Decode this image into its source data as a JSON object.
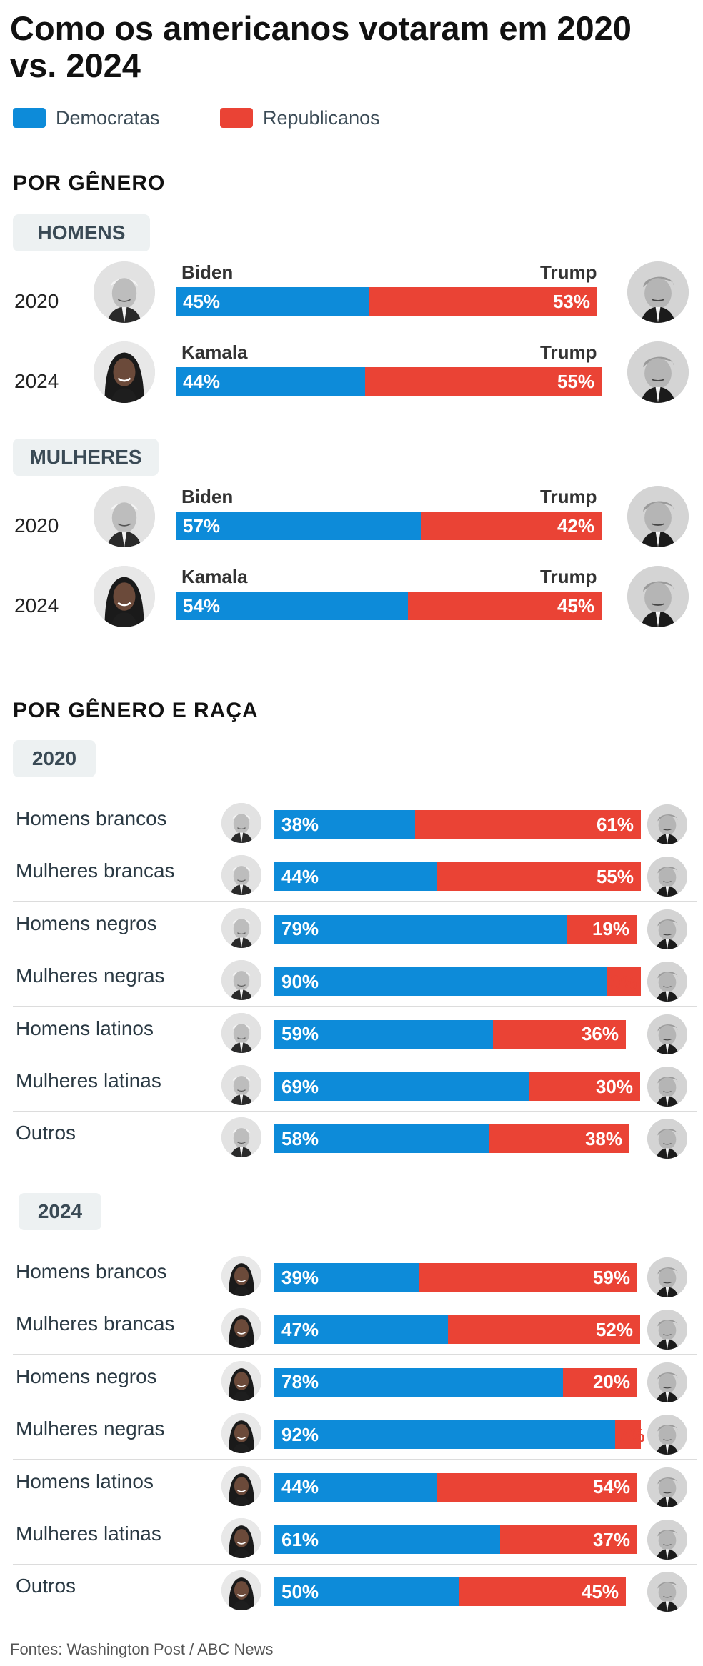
{
  "title": "Como os americanos votaram em 2020 vs. 2024",
  "legend": [
    {
      "label": "Democratas",
      "color": "#0d8bd9"
    },
    {
      "label": "Republicanos",
      "color": "#ea4335"
    }
  ],
  "sections": {
    "gender_title": "POR GÊNERO",
    "race_title": "POR GÊNERO E RAÇA"
  },
  "source": "Fontes: Washington Post / ABC News",
  "chart_data": [
    {
      "type": "bar",
      "title": "POR GÊNERO",
      "groups": [
        {
          "label": "HOMENS",
          "rows": [
            {
              "year": "2020",
              "dem_candidate": "Biden",
              "rep_candidate": "Trump",
              "dem": 45,
              "rep": 53
            },
            {
              "year": "2024",
              "dem_candidate": "Kamala",
              "rep_candidate": "Trump",
              "dem": 44,
              "rep": 55
            }
          ]
        },
        {
          "label": "MULHERES",
          "rows": [
            {
              "year": "2020",
              "dem_candidate": "Biden",
              "rep_candidate": "Trump",
              "dem": 57,
              "rep": 42
            },
            {
              "year": "2024",
              "dem_candidate": "Kamala",
              "rep_candidate": "Trump",
              "dem": 54,
              "rep": 45
            }
          ]
        }
      ]
    },
    {
      "type": "bar",
      "title": "POR GÊNERO E RAÇA",
      "years": [
        {
          "label": "2020",
          "dem_candidate": "Biden",
          "rows": [
            {
              "group": "Homens brancos",
              "dem": 38,
              "rep": 61
            },
            {
              "group": "Mulheres brancas",
              "dem": 44,
              "rep": 55
            },
            {
              "group": "Homens negros",
              "dem": 79,
              "rep": 19
            },
            {
              "group": "Mulheres negras",
              "dem": 90,
              "rep": 9
            },
            {
              "group": "Homens latinos",
              "dem": 59,
              "rep": 36
            },
            {
              "group": "Mulheres latinas",
              "dem": 69,
              "rep": 30
            },
            {
              "group": "Outros",
              "dem": 58,
              "rep": 38
            }
          ]
        },
        {
          "label": "2024",
          "dem_candidate": "Kamala",
          "rows": [
            {
              "group": "Homens brancos",
              "dem": 39,
              "rep": 59
            },
            {
              "group": "Mulheres brancas",
              "dem": 47,
              "rep": 52
            },
            {
              "group": "Homens negros",
              "dem": 78,
              "rep": 20
            },
            {
              "group": "Mulheres negras",
              "dem": 92,
              "rep": 7
            },
            {
              "group": "Homens latinos",
              "dem": 44,
              "rep": 54
            },
            {
              "group": "Mulheres latinas",
              "dem": 61,
              "rep": 37
            },
            {
              "group": "Outros",
              "dem": 50,
              "rep": 45
            }
          ]
        }
      ]
    }
  ]
}
